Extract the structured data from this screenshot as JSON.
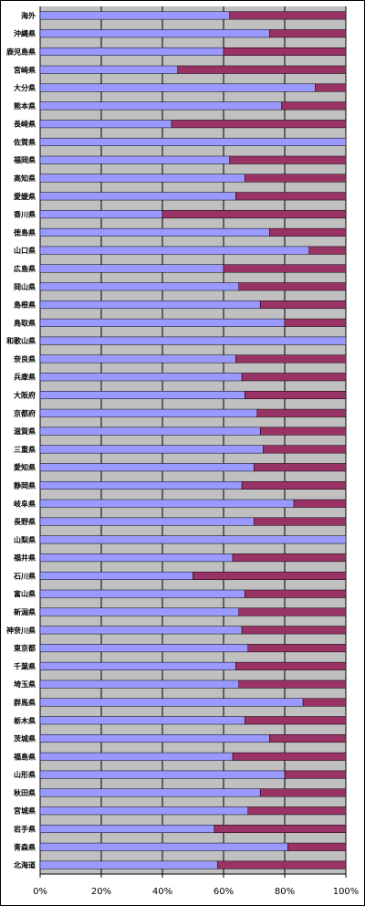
{
  "chart_data": {
    "type": "bar",
    "orientation": "horizontal",
    "stacked": "percent",
    "title": "",
    "xlabel": "",
    "ylabel": "",
    "xlim": [
      0,
      100
    ],
    "x_ticks": [
      "0%",
      "20%",
      "40%",
      "60%",
      "80%",
      "100%"
    ],
    "grid": true,
    "legend": "none",
    "colors": {
      "series1": "#9999ff",
      "series2": "#993366",
      "plot_background": "#c0c0c0",
      "gridline": "#000000"
    },
    "categories": [
      "海外",
      "沖縄県",
      "鹿児島県",
      "宮崎県",
      "大分県",
      "熊本県",
      "長崎県",
      "佐賀県",
      "福岡県",
      "高知県",
      "愛媛県",
      "香川県",
      "徳島県",
      "山口県",
      "広島県",
      "岡山県",
      "島根県",
      "鳥取県",
      "和歌山県",
      "奈良県",
      "兵庫県",
      "大阪府",
      "京都府",
      "滋賀県",
      "三重県",
      "愛知県",
      "静岡県",
      "岐阜県",
      "長野県",
      "山梨県",
      "福井県",
      "石川県",
      "富山県",
      "新潟県",
      "神奈川県",
      "東京都",
      "千葉県",
      "埼玉県",
      "群馬県",
      "栃木県",
      "茨城県",
      "福島県",
      "山形県",
      "秋田県",
      "宮城県",
      "岩手県",
      "青森県",
      "北海道"
    ],
    "series": [
      {
        "values": [
          62,
          75,
          60,
          45,
          90,
          79,
          43,
          100,
          62,
          67,
          64,
          40,
          75,
          88,
          60,
          65,
          72,
          80,
          100,
          64,
          66,
          67,
          71,
          72,
          73,
          70,
          66,
          83,
          70,
          100,
          63,
          50,
          67,
          65,
          66,
          68,
          64,
          65,
          86,
          67,
          75,
          63,
          80,
          72,
          68,
          57,
          81,
          58
        ]
      },
      {
        "values": [
          38,
          25,
          40,
          55,
          10,
          21,
          57,
          0,
          38,
          33,
          36,
          60,
          25,
          12,
          40,
          35,
          28,
          20,
          0,
          36,
          34,
          33,
          29,
          28,
          27,
          30,
          34,
          17,
          30,
          0,
          37,
          50,
          33,
          35,
          34,
          32,
          36,
          35,
          14,
          33,
          25,
          37,
          20,
          28,
          32,
          43,
          19,
          42
        ]
      }
    ]
  }
}
